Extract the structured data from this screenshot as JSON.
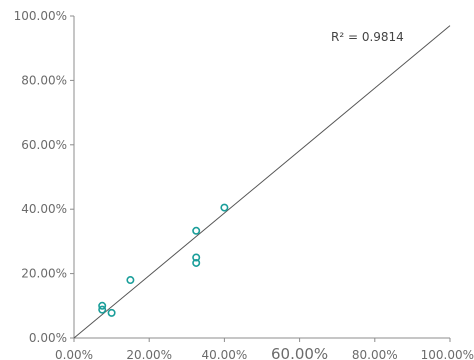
{
  "chart_data": {
    "type": "scatter",
    "title": "",
    "xlabel": "",
    "ylabel": "",
    "xlim": [
      0,
      100
    ],
    "ylim": [
      0,
      100
    ],
    "x_ticks": [
      "0.00%",
      "20.00%",
      "40.00%",
      "60.00%",
      "80.00%",
      "100.00%"
    ],
    "y_ticks": [
      "0.00%",
      "20.00%",
      "40.00%",
      "60.00%",
      "80.00%",
      "100.00%"
    ],
    "points": [
      {
        "x": 7.5,
        "y": 10.0
      },
      {
        "x": 7.5,
        "y": 8.8
      },
      {
        "x": 10.0,
        "y": 7.8
      },
      {
        "x": 15.0,
        "y": 18.0
      },
      {
        "x": 32.5,
        "y": 33.3
      },
      {
        "x": 32.5,
        "y": 25.0
      },
      {
        "x": 32.5,
        "y": 23.3
      },
      {
        "x": 40.0,
        "y": 40.5
      }
    ],
    "trendline": {
      "x": [
        0,
        100
      ],
      "y": [
        0,
        97
      ]
    },
    "annotation": "R² = 0.9814",
    "grid": false,
    "colors": {
      "marker": "#1a9e9a",
      "trendline": "#555555",
      "axis": "#8c8c8c",
      "text": "#6b6b6b"
    }
  }
}
